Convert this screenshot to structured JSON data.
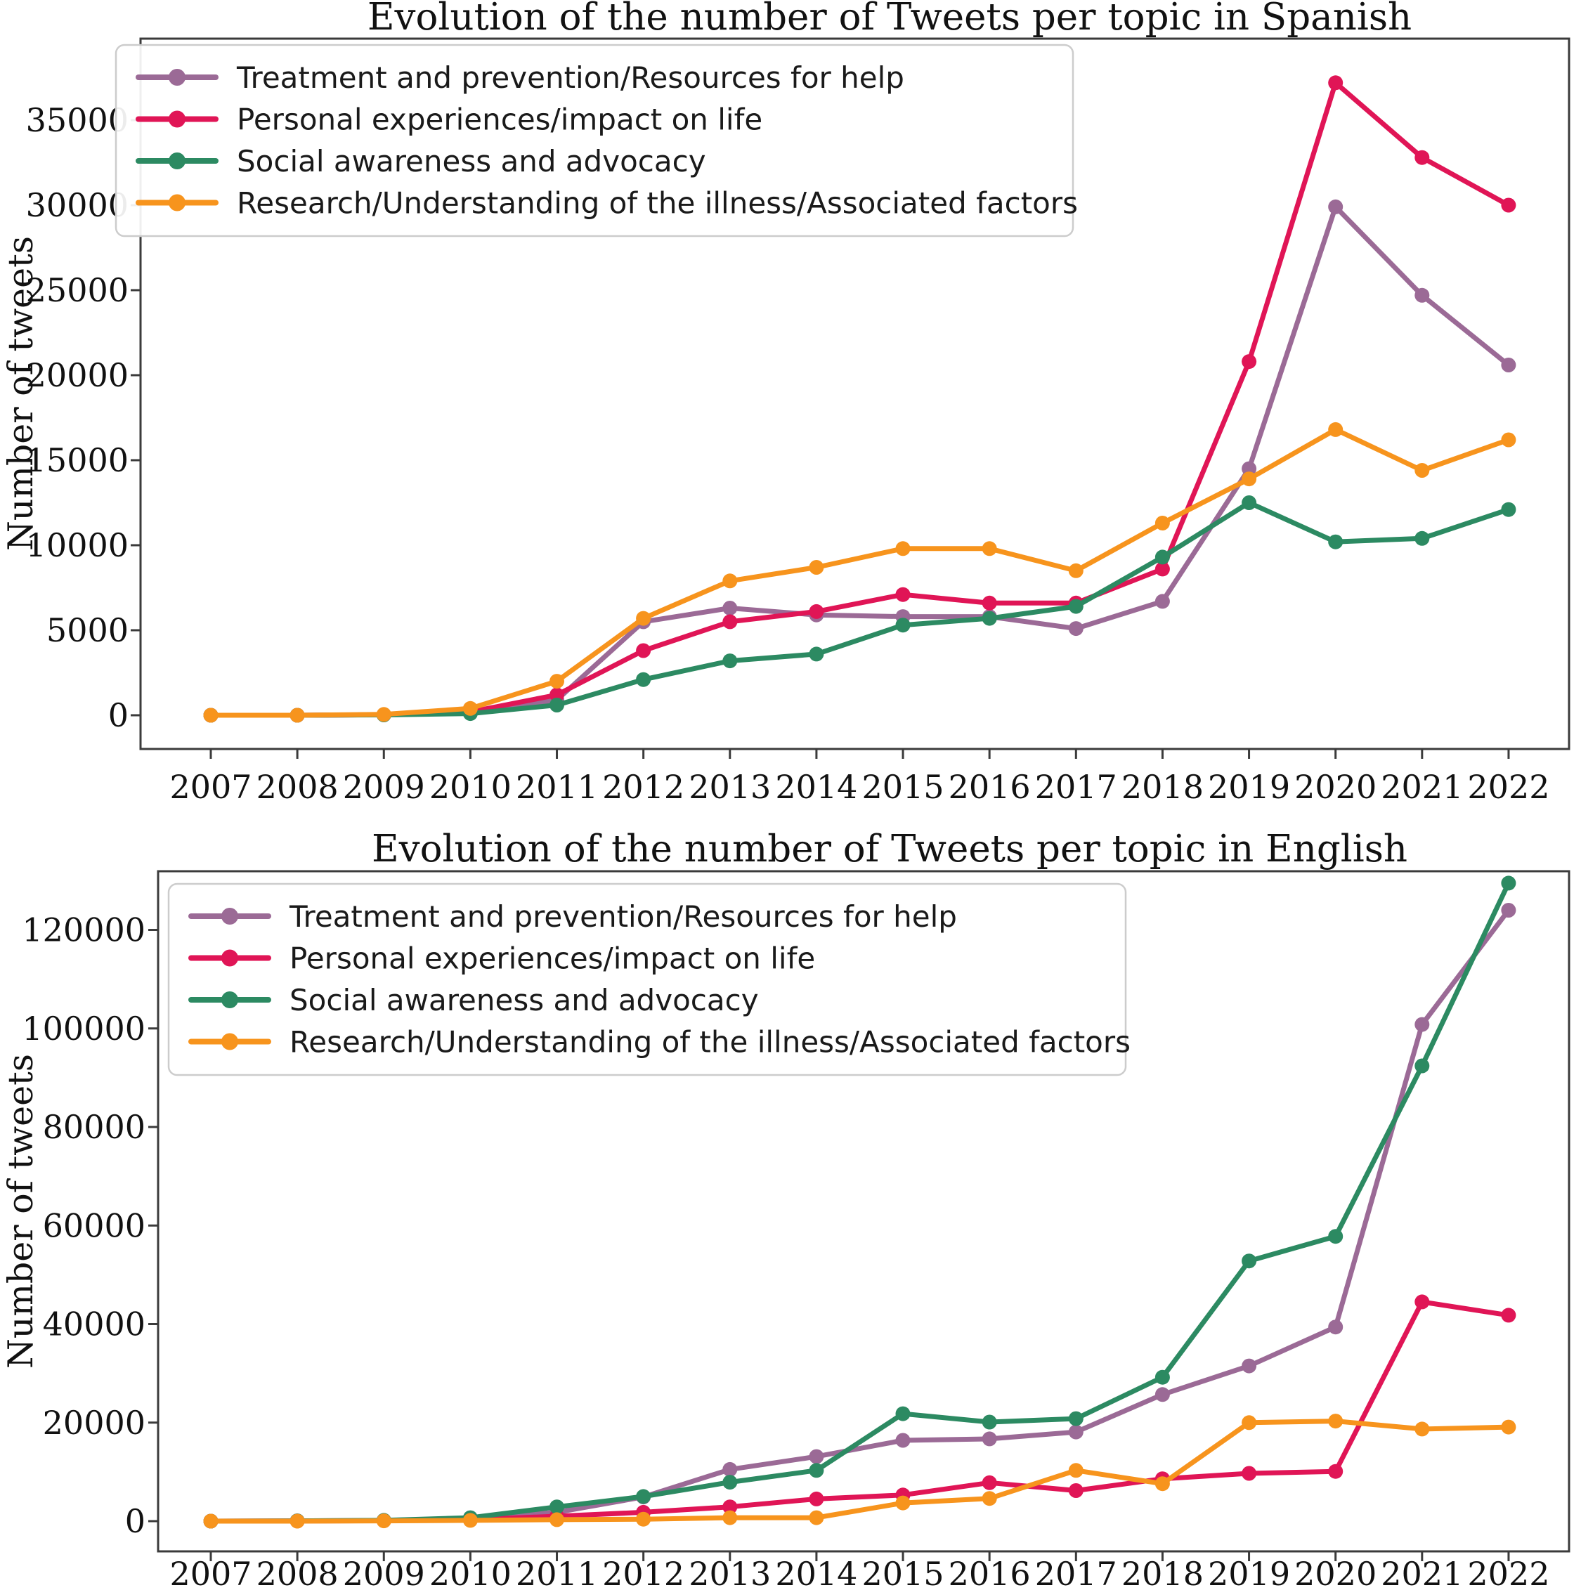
{
  "figure": {
    "description": "Two stacked line charts of tweet counts per topic by year",
    "accent_colors": {
      "treatment": "#9b6a96",
      "personal": "#e01556",
      "social": "#2c8a62",
      "research": "#f7941d",
      "spine": "#3b3b3b"
    },
    "chart_data": [
      {
        "type": "line",
        "title": "Evolution of the number of Tweets per topic in Spanish",
        "xlabel": "",
        "ylabel": "Number of tweets",
        "categories": [
          "2007",
          "2008",
          "2009",
          "2010",
          "2011",
          "2012",
          "2013",
          "2014",
          "2015",
          "2016",
          "2017",
          "2018",
          "2019",
          "2020",
          "2021",
          "2022"
        ],
        "yticks": [
          0,
          5000,
          10000,
          15000,
          20000,
          25000,
          30000,
          35000
        ],
        "ylim": [
          0,
          38000
        ],
        "grid": false,
        "legend_position": "upper left",
        "series": [
          {
            "key": "treatment",
            "name": "Treatment and prevention/Resources for help",
            "color": "#9b6a96",
            "values": [
              0,
              0,
              30,
              150,
              900,
              5500,
              6300,
              5900,
              5800,
              5800,
              5100,
              6700,
              14500,
              29900,
              24700,
              20600
            ]
          },
          {
            "key": "personal",
            "name": "Personal experiences/impact on life",
            "color": "#e01556",
            "values": [
              0,
              0,
              30,
              200,
              1200,
              3800,
              5500,
              6100,
              7100,
              6600,
              6600,
              8600,
              20800,
              37200,
              32800,
              30000
            ]
          },
          {
            "key": "social",
            "name": "Social awareness and advocacy",
            "color": "#2c8a62",
            "values": [
              0,
              0,
              20,
              100,
              600,
              2100,
              3200,
              3600,
              5300,
              5700,
              6400,
              9300,
              12500,
              10200,
              10400,
              12100
            ]
          },
          {
            "key": "research",
            "name": "Research/Understanding of the illness/Associated factors",
            "color": "#f7941d",
            "values": [
              0,
              0,
              50,
              400,
              2000,
              5700,
              7900,
              8700,
              9800,
              9800,
              8500,
              11300,
              13900,
              16800,
              14400,
              16200
            ]
          }
        ]
      },
      {
        "type": "line",
        "title": "Evolution of the number of Tweets per topic in English",
        "xlabel": "",
        "ylabel": "Number of tweets",
        "categories": [
          "2007",
          "2008",
          "2009",
          "2010",
          "2011",
          "2012",
          "2013",
          "2014",
          "2015",
          "2016",
          "2017",
          "2018",
          "2019",
          "2020",
          "2021",
          "2022"
        ],
        "yticks": [
          0,
          20000,
          40000,
          60000,
          80000,
          100000,
          120000
        ],
        "ylim": [
          0,
          133000
        ],
        "grid": false,
        "legend_position": "upper left",
        "series": [
          {
            "key": "treatment",
            "name": "Treatment and prevention/Resources for help",
            "color": "#9b6a96",
            "values": [
              0,
              50,
              150,
              500,
              1800,
              4900,
              10500,
              13100,
              16400,
              16700,
              18100,
              25700,
              31500,
              39400,
              100800,
              124000
            ]
          },
          {
            "key": "personal",
            "name": "Personal experiences/impact on life",
            "color": "#e01556",
            "values": [
              0,
              30,
              100,
              300,
              1000,
              1800,
              2900,
              4500,
              5300,
              7800,
              6200,
              8600,
              9700,
              10100,
              44500,
              41800
            ]
          },
          {
            "key": "social",
            "name": "Social awareness and advocacy",
            "color": "#2c8a62",
            "values": [
              0,
              50,
              150,
              700,
              2900,
              5000,
              7900,
              10300,
              21800,
              20100,
              20800,
              29200,
              52800,
              57800,
              92400,
              129500
            ]
          },
          {
            "key": "research",
            "name": "Research/Understanding of the illness/Associated factors",
            "color": "#f7941d",
            "values": [
              0,
              0,
              50,
              150,
              300,
              400,
              700,
              700,
              3700,
              4600,
              10300,
              7600,
              20000,
              20300,
              18700,
              19100
            ]
          }
        ]
      }
    ]
  }
}
